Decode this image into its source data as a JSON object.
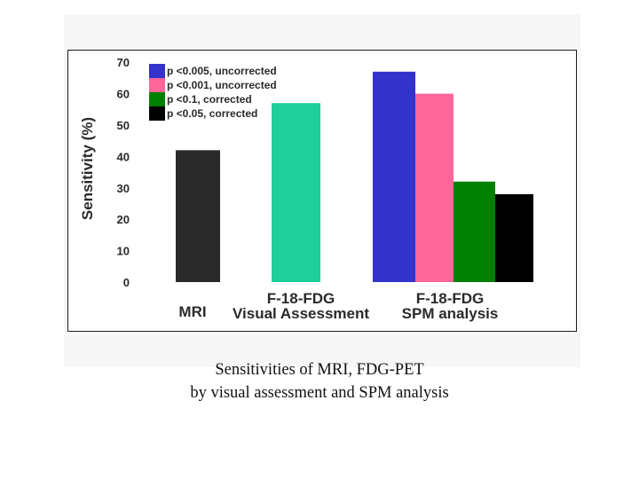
{
  "chart_data": {
    "type": "bar",
    "ylabel": "Sensitivity (%)",
    "xlabel": "",
    "ylim": [
      0,
      70
    ],
    "yticks": [
      "0",
      "10",
      "20",
      "30",
      "40",
      "50",
      "60",
      "70"
    ],
    "categories": [
      {
        "label": [
          "MRI"
        ],
        "bars": [
          {
            "series": "MRI",
            "value": 42,
            "color": "#2a2a2a"
          }
        ]
      },
      {
        "label": [
          "F-18-FDG",
          "Visual Assessment"
        ],
        "bars": [
          {
            "series": "F-18-FDG Visual Assessment",
            "value": 57,
            "color": "#1fcf9b"
          }
        ]
      },
      {
        "label": [
          "F-18-FDG",
          "SPM analysis"
        ],
        "bars": [
          {
            "series": "p <0.005, uncorrected",
            "value": 67,
            "color": "#3333cc"
          },
          {
            "series": "p <0.001, uncorrected",
            "value": 60,
            "color": "#ff6699"
          },
          {
            "series": "p <0.1, corrected",
            "value": 32,
            "color": "#008000"
          },
          {
            "series": "p <0.05, corrected",
            "value": 28,
            "color": "#000000"
          }
        ]
      }
    ],
    "legend": {
      "placement": "top-left",
      "entries": [
        {
          "label": "p <0.005, uncorrected",
          "color": "#3333cc"
        },
        {
          "label": "p <0.001, uncorrected",
          "color": "#ff6699"
        },
        {
          "label": "p <0.1, corrected",
          "color": "#008000"
        },
        {
          "label": "p <0.05, corrected",
          "color": "#000000"
        }
      ]
    },
    "grid": false
  },
  "caption": {
    "line1": "Sensitivities of MRI, FDG-PET",
    "line2": "by visual assessment and SPM analysis"
  }
}
